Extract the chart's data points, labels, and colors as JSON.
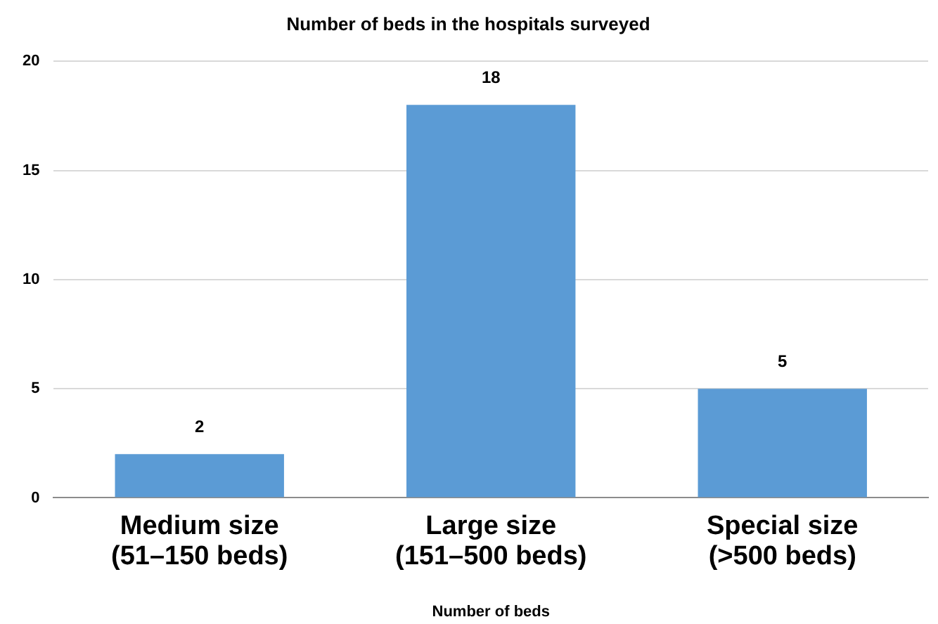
{
  "chart_data": {
    "type": "bar",
    "title": "Number of beds in the hospitals surveyed",
    "xlabel": "Number of beds",
    "categories": [
      "Medium size\n(51–150 beds)",
      "Large size\n(151–500 beds)",
      "Special size\n(>500 beds)"
    ],
    "values": [
      2,
      18,
      5
    ],
    "color": "#5b9bd5",
    "ylim": [
      0,
      20
    ],
    "yticks": [
      0,
      5,
      10,
      15,
      20
    ],
    "grid": "y",
    "data_labels": true
  }
}
